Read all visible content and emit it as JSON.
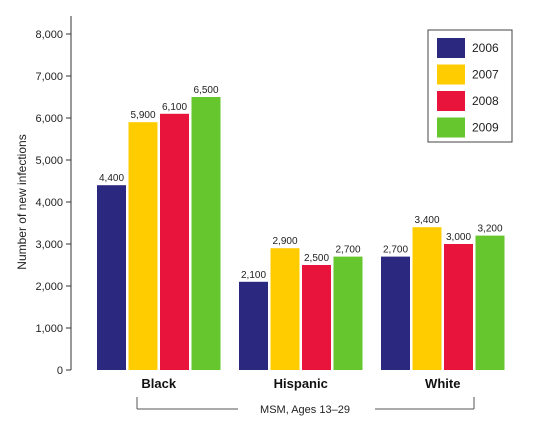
{
  "chart_data": {
    "type": "bar",
    "categories": [
      "Black",
      "Hispanic",
      "White"
    ],
    "series": [
      {
        "name": "2006",
        "color": "#2b2880",
        "values": [
          4400,
          2100,
          2700
        ],
        "labels": [
          "4,400",
          "2,100",
          "2,700"
        ]
      },
      {
        "name": "2007",
        "color": "#ffcc00",
        "values": [
          5900,
          2900,
          3400
        ],
        "labels": [
          "5,900",
          "2,900",
          "3,400"
        ]
      },
      {
        "name": "2008",
        "color": "#e8143c",
        "values": [
          6100,
          2500,
          3000
        ],
        "labels": [
          "6,100",
          "2,500",
          "3,000"
        ]
      },
      {
        "name": "2009",
        "color": "#66c62e",
        "values": [
          6500,
          2700,
          3200
        ],
        "labels": [
          "6,500",
          "2,700",
          "3,200"
        ]
      }
    ],
    "title": "",
    "xlabel": "MSM, Ages 13–29",
    "ylabel": "Number of new infections",
    "ylim": [
      0,
      8000
    ],
    "yticks": [
      0,
      1000,
      2000,
      3000,
      4000,
      5000,
      6000,
      7000,
      8000
    ],
    "ytick_labels": [
      "0",
      "1,000",
      "2,000",
      "3,000",
      "4,000",
      "5,000",
      "6,000",
      "7,000",
      "8,000"
    ],
    "grid": false,
    "legend_position": "top-right"
  }
}
